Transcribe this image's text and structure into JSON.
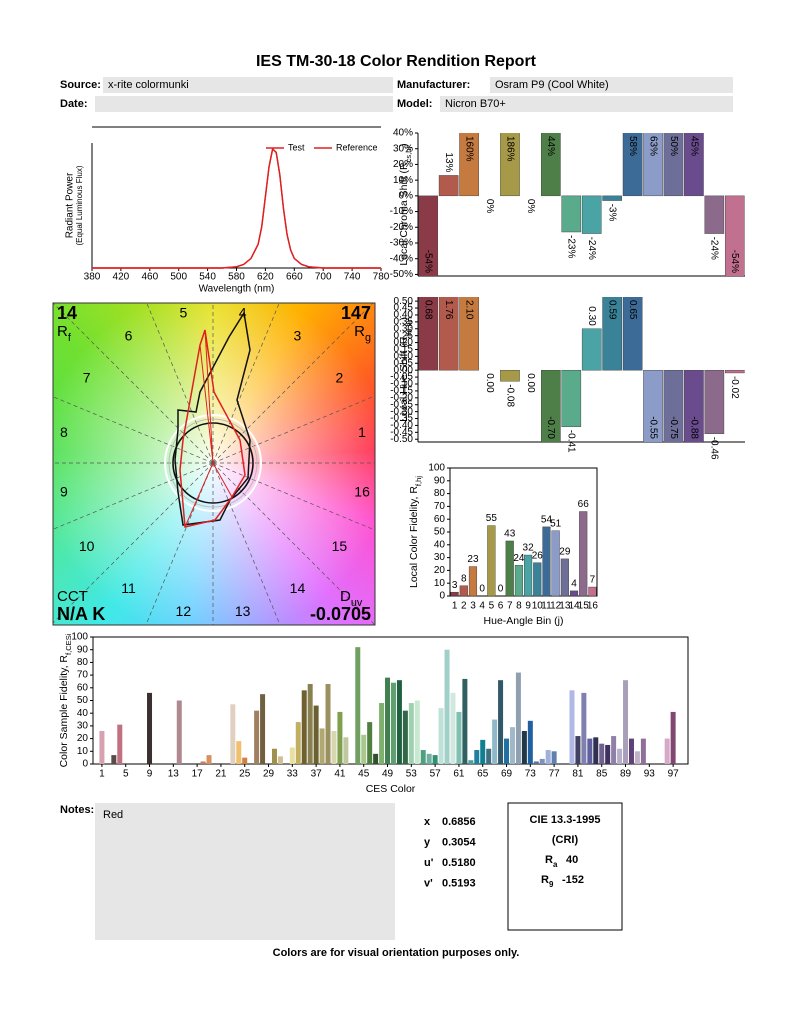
{
  "header": {
    "title": "IES TM-30-18 Color Rendition Report",
    "source_label": "Source:",
    "source": "x-rite colormunki",
    "manufacturer_label": "Manufacturer:",
    "manufacturer": "Osram P9 (Cool White)",
    "date_label": "Date:",
    "model_label": "Model:",
    "model": "Nicron B70+"
  },
  "chart_data": [
    {
      "type": "line",
      "y_label": [
        "Radiant Power",
        "(Equal Luminous Flux)"
      ],
      "x_label": "Wavelength (nm)",
      "x": [
        380,
        560,
        580,
        590,
        600,
        610,
        615,
        620,
        625,
        630,
        635,
        640,
        645,
        650,
        655,
        660,
        670,
        680,
        700,
        780
      ],
      "series": [
        {
          "name": "Test",
          "color": "#e02020",
          "values": [
            0,
            0,
            0.01,
            0.03,
            0.08,
            0.2,
            0.35,
            0.6,
            0.85,
            1.0,
            0.97,
            0.78,
            0.5,
            0.28,
            0.15,
            0.08,
            0.03,
            0.01,
            0,
            0
          ]
        },
        {
          "name": "Reference",
          "color": "#e02020",
          "values": [
            0,
            0,
            0.01,
            0.03,
            0.08,
            0.2,
            0.35,
            0.6,
            0.85,
            1.0,
            0.97,
            0.78,
            0.5,
            0.28,
            0.15,
            0.08,
            0.03,
            0.01,
            0,
            0
          ]
        }
      ],
      "xlim": [
        380,
        780
      ],
      "ylim": [
        0,
        1.05
      ],
      "xticks": [
        380,
        420,
        460,
        500,
        540,
        580,
        620,
        660,
        700,
        740,
        780
      ],
      "legend": "top-right"
    },
    {
      "type": "vector",
      "rf": 14,
      "rf_label": "R",
      "rf_sub": "f",
      "rg": 147,
      "rg_label": "R",
      "rg_sub": "g",
      "cct_label": "CCT",
      "cct": "N/A K",
      "duv_label": "D",
      "duv_sub": "uv",
      "duv": -0.0705,
      "hue_bins": [
        1,
        2,
        3,
        4,
        5,
        6,
        7,
        8,
        9,
        10,
        11,
        12,
        13,
        14,
        15,
        16
      ]
    },
    {
      "type": "bar",
      "y_label": {
        "text": "Local Chroma Shift (R",
        "sub": "cs,hj",
        "end": ")"
      },
      "values": [
        -54,
        13,
        160,
        0,
        186,
        0,
        44,
        -23,
        -24,
        -3,
        58,
        63,
        50,
        45,
        -24,
        -54
      ],
      "value_labels": [
        "-54%",
        "13%",
        "160%",
        "0%",
        "186%",
        "0%",
        "44%",
        "-23%",
        "-24%",
        "-3%",
        "58%",
        "63%",
        "50%",
        "45%",
        "-24%",
        "-54%"
      ],
      "colors": [
        "#8b3a48",
        "#b25a4c",
        "#c57a40",
        "#c8903c",
        "#a69a48",
        "#8e9a58",
        "#4f7f48",
        "#5aaa8c",
        "#4aa3a4",
        "#3a8298",
        "#3d6b98",
        "#8c9cc8",
        "#6e6f98",
        "#6a4c8e",
        "#8c6a8c",
        "#c2708f"
      ],
      "ylim": [
        -51,
        40
      ],
      "yticks": [
        {
          "value": 40,
          "label": "40%"
        },
        {
          "value": 30,
          "label": "30%"
        },
        {
          "value": 20,
          "label": "20%"
        },
        {
          "value": 10,
          "label": "10%"
        },
        {
          "value": 0,
          "label": "0%"
        },
        {
          "value": -10,
          "label": "-10%"
        },
        {
          "value": -20,
          "label": "-20%"
        },
        {
          "value": -30,
          "label": "-30%"
        },
        {
          "value": -40,
          "label": "-40%"
        },
        {
          "value": -50,
          "label": "-50%"
        }
      ]
    },
    {
      "type": "bar",
      "y_label": {
        "text": "Local Hue Shift (R",
        "sub": "hs,hj",
        "end": ")"
      },
      "values": [
        0.68,
        1.76,
        2.1,
        0,
        -0.08,
        0,
        -0.7,
        -0.41,
        0.3,
        0.59,
        0.65,
        -0.55,
        -0.75,
        -0.88,
        -0.46,
        -0.02
      ],
      "value_labels": [
        "0.68",
        "1.76",
        "2.10",
        "0.00",
        "-0.08",
        "0.00",
        "-0.70",
        "-0.41",
        "0.30",
        "0.59",
        "0.65",
        "-0.55",
        "-0.75",
        "-0.88",
        "-0.46",
        "-0.02"
      ],
      "colors": [
        "#8b3a48",
        "#b25a4c",
        "#c57a40",
        "#c8903c",
        "#a69a48",
        "#8e9a58",
        "#4f7f48",
        "#5aaa8c",
        "#4aa3a4",
        "#3a8298",
        "#3d6b98",
        "#8c9cc8",
        "#6e6f98",
        "#6a4c8e",
        "#8c6a8c",
        "#c2708f"
      ],
      "ylim": [
        -0.52,
        0.53
      ],
      "yticks": [
        {
          "value": 0.5,
          "label": "0.50"
        },
        {
          "value": 0.45,
          "label": "0.45"
        },
        {
          "value": 0.4,
          "label": "0.40"
        },
        {
          "value": 0.35,
          "label": "0.35"
        },
        {
          "value": 0.3,
          "label": "0.30"
        },
        {
          "value": 0.25,
          "label": "0.25"
        },
        {
          "value": 0.2,
          "label": "0.20"
        },
        {
          "value": 0.15,
          "label": "0.15"
        },
        {
          "value": 0.1,
          "label": "0.10"
        },
        {
          "value": 0.05,
          "label": "0.05"
        },
        {
          "value": 0,
          "label": "0.00"
        },
        {
          "value": -0.05,
          "label": "-0.05"
        },
        {
          "value": -0.1,
          "label": "-0.10"
        },
        {
          "value": -0.15,
          "label": "-0.15"
        },
        {
          "value": -0.2,
          "label": "-0.20"
        },
        {
          "value": -0.25,
          "label": "-0.25"
        },
        {
          "value": -0.3,
          "label": "-0.30"
        },
        {
          "value": -0.35,
          "label": "-0.35"
        },
        {
          "value": -0.4,
          "label": "-0.40"
        },
        {
          "value": -0.45,
          "label": "-0.45"
        },
        {
          "value": -0.5,
          "label": "-0.50"
        }
      ]
    },
    {
      "type": "bar",
      "y_label": {
        "text": "Local Color Fidelity, R",
        "sub": "f,hj"
      },
      "x_label": "Hue-Angle Bin (j)",
      "categories": [
        1,
        2,
        3,
        4,
        5,
        6,
        7,
        8,
        9,
        10,
        11,
        12,
        13,
        14,
        15,
        16
      ],
      "values": [
        3,
        8,
        23,
        0,
        55,
        0,
        43,
        24,
        32,
        26,
        54,
        51,
        29,
        4,
        66,
        7
      ],
      "colors": [
        "#8b3a48",
        "#b25a4c",
        "#c57a40",
        "#c8903c",
        "#a69a48",
        "#8e9a58",
        "#4f7f48",
        "#5aaa8c",
        "#4aa3a4",
        "#3a8298",
        "#3d6b98",
        "#8c9cc8",
        "#6e6f98",
        "#6a4c8e",
        "#8c6a8c",
        "#c2708f"
      ],
      "ylim": [
        0,
        100
      ],
      "yticks": [
        0,
        10,
        20,
        30,
        40,
        50,
        60,
        70,
        80,
        90,
        100
      ]
    },
    {
      "type": "bar",
      "y_label": {
        "text": "Color Sample Fidelity, R",
        "sub": "f,CESi"
      },
      "x_label": "CES Color",
      "x": [
        1,
        2,
        3,
        4,
        5,
        6,
        7,
        8,
        9,
        10,
        11,
        12,
        13,
        14,
        15,
        16,
        17,
        18,
        19,
        20,
        21,
        22,
        23,
        24,
        25,
        26,
        27,
        28,
        29,
        30,
        31,
        32,
        33,
        34,
        35,
        36,
        37,
        38,
        39,
        40,
        41,
        42,
        43,
        44,
        45,
        46,
        47,
        48,
        49,
        50,
        51,
        52,
        53,
        54,
        55,
        56,
        57,
        58,
        59,
        60,
        61,
        62,
        63,
        64,
        65,
        66,
        67,
        68,
        69,
        70,
        71,
        72,
        73,
        74,
        75,
        76,
        77,
        78,
        79,
        80,
        81,
        82,
        83,
        84,
        85,
        86,
        87,
        88,
        89,
        90,
        91,
        92,
        93,
        94,
        95,
        96,
        97,
        98,
        99
      ],
      "values": [
        26,
        0,
        7,
        31,
        0,
        0,
        0,
        0,
        56,
        0,
        0,
        0,
        0,
        50,
        0,
        0,
        0,
        2,
        7,
        0,
        0,
        0,
        47,
        18,
        5,
        0,
        42,
        55,
        0,
        12,
        6,
        0,
        13,
        33,
        58,
        63,
        46,
        28,
        63,
        26,
        41,
        21,
        0,
        92,
        23,
        33,
        8,
        48,
        68,
        64,
        66,
        42,
        48,
        50,
        11,
        8,
        7,
        44,
        90,
        56,
        41,
        67,
        3,
        11,
        19,
        12,
        35,
        66,
        20,
        29,
        72,
        26,
        34,
        2,
        4,
        11,
        10,
        0,
        0,
        58,
        22,
        56,
        20,
        21,
        16,
        15,
        22,
        12,
        66,
        20,
        10,
        20,
        0,
        0,
        0,
        20,
        41,
        0,
        0
      ],
      "colors": [
        "#d9a0b0",
        "#e8c0c8",
        "#5a4a4a",
        "#c07080",
        "#e0b0b8",
        "#a06070",
        "#f0d0d8",
        "#7a5a5a",
        "#3a3030",
        "#c89090",
        "#e8d0c0",
        "#906050",
        "#b8a0a0",
        "#b08890",
        "#d8b0a0",
        "#e0c0a0",
        "#a07050",
        "#c08060",
        "#d89060",
        "#e8c090",
        "#806040",
        "#f0d0b0",
        "#e0d0c0",
        "#f0c070",
        "#d08040",
        "#8a7050",
        "#a08060",
        "#706040",
        "#c0b080",
        "#a09050",
        "#d0c090",
        "#808040",
        "#e8e0a0",
        "#c0b060",
        "#706030",
        "#888050",
        "#6a6030",
        "#b0a870",
        "#9a9060",
        "#d8d8b0",
        "#80a050",
        "#c0c8a0",
        "#303830",
        "#70a060",
        "#a8c890",
        "#508040",
        "#305030",
        "#80b070",
        "#408050",
        "#60a070",
        "#206040",
        "#306848",
        "#a0d0b0",
        "#c8e8d0",
        "#50a080",
        "#70b0a0",
        "#309070",
        "#c0e0d8",
        "#a0d0c8",
        "#d0e8e0",
        "#80c0b0",
        "#306060",
        "#50a0a0",
        "#2080a0",
        "#108090",
        "#407080",
        "#90b8c8",
        "#305868",
        "#2070a0",
        "#a0b8c8",
        "#90a0b0",
        "#203848",
        "#2060a0",
        "#607090",
        "#8090c0",
        "#a0b0d8",
        "#6080b0",
        "#c0c8e8",
        "#d0d8f0",
        "#b0b8e8",
        "#404060",
        "#8080b0",
        "#6060a0",
        "#303050",
        "#706090",
        "#403060",
        "#9080a8",
        "#b8b0c8",
        "#a8a0b8",
        "#604078",
        "#c0b0c8",
        "#907098",
        "#c8a0c0",
        "#d8b0d0",
        "#a06890",
        "#d8a8c8",
        "#804870",
        "#e0c0d0",
        "#c07090"
      ],
      "xlim": [
        -0.5,
        99.5
      ],
      "ylim": [
        0,
        100
      ],
      "xticks": [
        1,
        5,
        9,
        13,
        17,
        21,
        25,
        29,
        33,
        37,
        41,
        45,
        49,
        53,
        57,
        61,
        65,
        69,
        73,
        77,
        81,
        85,
        89,
        93,
        97
      ],
      "yticks": [
        0,
        10,
        20,
        30,
        40,
        50,
        60,
        70,
        80,
        90,
        100
      ]
    }
  ],
  "notes": {
    "label": "Notes:",
    "text": "Red"
  },
  "chromaticity": [
    {
      "label": "x",
      "value": "0.6856"
    },
    {
      "label": "y",
      "value": "0.3054"
    },
    {
      "label": "u'",
      "value": "0.5180"
    },
    {
      "label": "v'",
      "value": "0.5193"
    }
  ],
  "cie": {
    "title": "CIE 13.3-1995",
    "subtitle": "(CRI)",
    "ra_label": "R",
    "ra_sub": "a",
    "ra": 40,
    "r9_label": "R",
    "r9_sub": "9",
    "r9": -152
  },
  "footer": "Colors are for visual orientation purposes only."
}
